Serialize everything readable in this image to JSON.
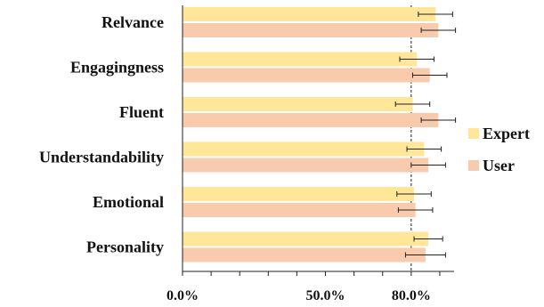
{
  "chart_data": {
    "type": "bar",
    "orientation": "horizontal",
    "categories": [
      "Relvance",
      "Engagingness",
      "Fluent",
      "Understandability",
      "Emotional",
      "Personality"
    ],
    "series": [
      {
        "name": "Expert",
        "color": "#FFE699",
        "values": [
          88.5,
          82.0,
          80.5,
          84.5,
          81.0,
          86.0
        ],
        "error": [
          6,
          6,
          6,
          6,
          6,
          5
        ]
      },
      {
        "name": "User",
        "color": "#F8CBAD",
        "values": [
          89.5,
          86.5,
          89.5,
          86.0,
          81.5,
          85.0
        ],
        "error": [
          6,
          6,
          6,
          6,
          6,
          7
        ]
      }
    ],
    "xlim": [
      0,
      95
    ],
    "xticks": [
      {
        "value": 0,
        "label": "0.0%"
      },
      {
        "value": 50,
        "label": "50.0%"
      },
      {
        "value": 80,
        "label": "80.0%"
      }
    ],
    "reference_line": 80,
    "legend_position": "right",
    "grid": false
  }
}
